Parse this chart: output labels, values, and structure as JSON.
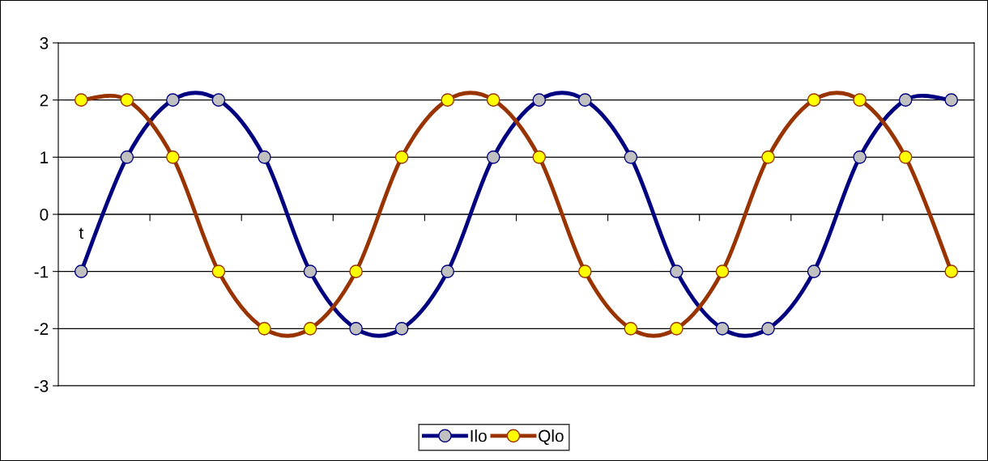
{
  "chart_data": {
    "type": "line",
    "categories": [
      null,
      null,
      null,
      null,
      null,
      null,
      null,
      null,
      null,
      null,
      null,
      null,
      null,
      null,
      null,
      null,
      null,
      null,
      null,
      null
    ],
    "series": [
      {
        "name": "Ilo",
        "color": "#000080",
        "values": [
          -1,
          1,
          2,
          2,
          1,
          -1,
          -2,
          -2,
          -1,
          1,
          2,
          2,
          1,
          -1,
          -2,
          -2,
          -1,
          1,
          2,
          2
        ]
      },
      {
        "name": "Qlo",
        "color": "#993300",
        "values": [
          2,
          2,
          1,
          -1,
          -2,
          -2,
          -1,
          1,
          2,
          2,
          1,
          -1,
          -2,
          -2,
          -1,
          1,
          2,
          2,
          1,
          -1
        ]
      }
    ],
    "ylim": [
      -3,
      3
    ],
    "yticks": [
      -3,
      -2,
      -1,
      0,
      1,
      2,
      3
    ],
    "grid": "y",
    "legend": "bottom",
    "marker": "circle",
    "line_style": "solid",
    "annotations": [
      "t"
    ]
  }
}
